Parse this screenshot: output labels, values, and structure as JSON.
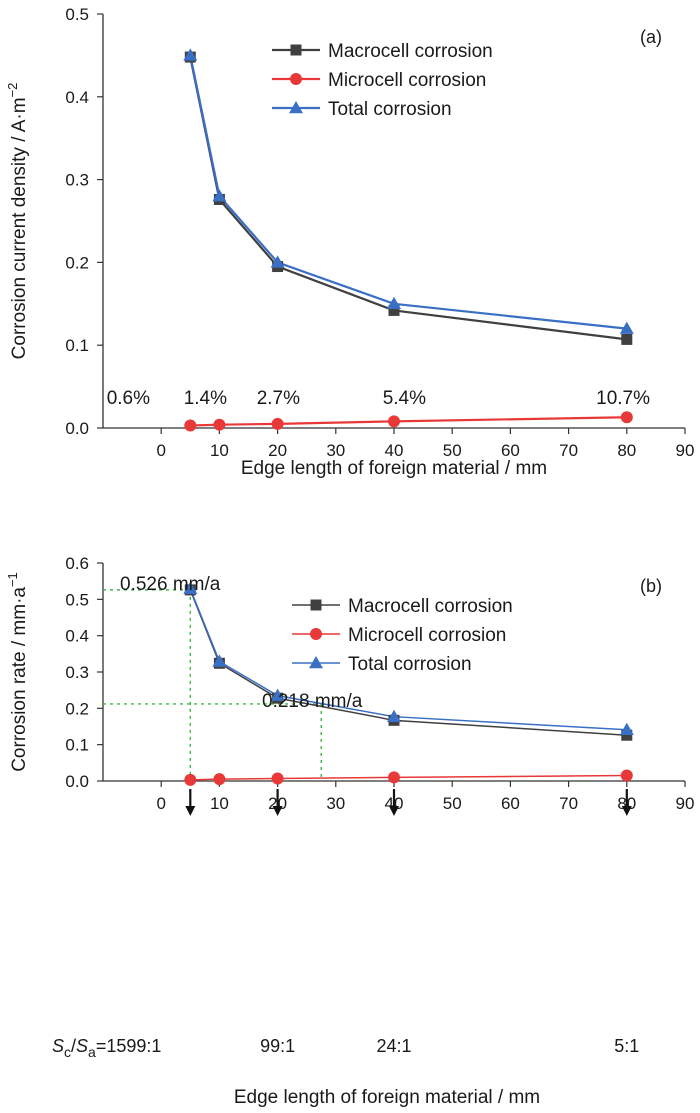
{
  "chart_data": [
    {
      "type": "line",
      "panel_label": "(a)",
      "xlabel": "Edge length of foreign material / mm",
      "ylabel": "Corrosion current density / A·m",
      "ylabel_sup": "−2",
      "xlim": [
        -10,
        90
      ],
      "ylim": [
        0,
        0.5
      ],
      "xticks": [
        0,
        10,
        20,
        30,
        40,
        50,
        60,
        70,
        80,
        90
      ],
      "yticks": [
        0.0,
        0.1,
        0.2,
        0.3,
        0.4,
        0.5
      ],
      "ytick_labels": [
        "0.0",
        "0.1",
        "0.2",
        "0.3",
        "0.4",
        "0.5"
      ],
      "x": [
        5,
        10,
        20,
        40,
        80
      ],
      "series": [
        {
          "name": "Macrocell corrosion",
          "color": "#404040",
          "marker": "square",
          "values": [
            0.448,
            0.276,
            0.195,
            0.142,
            0.107
          ]
        },
        {
          "name": "Microcell corrosion",
          "color": "#e83838",
          "marker": "circle",
          "values": [
            0.003,
            0.004,
            0.005,
            0.008,
            0.013
          ]
        },
        {
          "name": "Total corrosion",
          "color": "#3a6fc6",
          "marker": "triangle",
          "values": [
            0.45,
            0.28,
            0.2,
            0.15,
            0.12
          ]
        }
      ],
      "annotations": [
        {
          "text": "0.6%",
          "x": 5
        },
        {
          "text": "1.4%",
          "x": 10
        },
        {
          "text": "2.7%",
          "x": 20
        },
        {
          "text": "5.4%",
          "x": 40
        },
        {
          "text": "10.7%",
          "x": 80
        }
      ],
      "legend": "top-right"
    },
    {
      "type": "line",
      "panel_label": "(b)",
      "xlabel": "Edge length of foreign material / mm",
      "ylabel": "Corrosion rate / mm·a",
      "ylabel_sup": "−1",
      "xlim": [
        -10,
        90
      ],
      "ylim": [
        0,
        0.6
      ],
      "xticks": [
        0,
        10,
        20,
        30,
        40,
        50,
        60,
        70,
        80,
        90
      ],
      "yticks": [
        0.0,
        0.1,
        0.2,
        0.3,
        0.4,
        0.5,
        0.6
      ],
      "ytick_labels": [
        "0.0",
        "0.1",
        "0.2",
        "0.3",
        "0.4",
        "0.5",
        "0.6"
      ],
      "x": [
        5,
        10,
        20,
        40,
        80
      ],
      "series": [
        {
          "name": "Macrocell corrosion",
          "color": "#404040",
          "marker": "square",
          "values": [
            0.526,
            0.324,
            0.228,
            0.167,
            0.126
          ]
        },
        {
          "name": "Microcell corrosion",
          "color": "#e83838",
          "marker": "circle",
          "values": [
            0.003,
            0.005,
            0.007,
            0.01,
            0.015
          ]
        },
        {
          "name": "Total corrosion",
          "color": "#3a6fc6",
          "marker": "triangle",
          "values": [
            0.529,
            0.329,
            0.235,
            0.177,
            0.141
          ]
        }
      ],
      "annotations": [
        {
          "text": "0.526 mm/a",
          "x": 5,
          "y": 0.526
        },
        {
          "text": "0.218 mm/a",
          "x": 27.5,
          "y": 0.212
        }
      ],
      "ratio_labels": [
        {
          "prefix_s": "S",
          "sub_c": "c",
          "slash": "/",
          "s2": "S",
          "sub_a": "a",
          "value": "=1599:1",
          "x": 5
        },
        {
          "value": "99:1",
          "x": 20
        },
        {
          "value": "24:1",
          "x": 40
        },
        {
          "value": "5:1",
          "x": 80
        }
      ],
      "legend": "top-right"
    }
  ]
}
